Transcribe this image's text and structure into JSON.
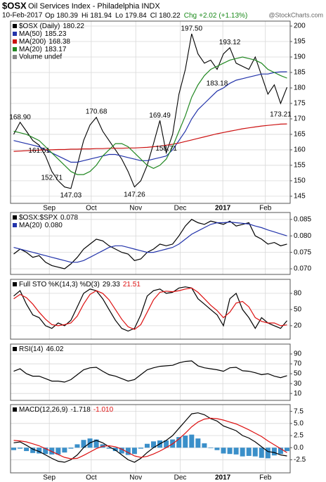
{
  "header": {
    "symbol": "$OSX",
    "title": "Oil Services Index - Philadelphia INDX",
    "date": "10-Feb-2017",
    "quote": [
      {
        "label": "Op",
        "value": 180.39
      },
      {
        "label": "Hi",
        "value": 181.94
      },
      {
        "label": "Lo",
        "value": 179.84
      },
      {
        "label": "Cl",
        "value": 180.22
      }
    ],
    "change_label": "Chg",
    "change": {
      "value": 2.02,
      "label": "+2.02"
    },
    "change_pct": {
      "value": 1.13,
      "label": "(+1.13%)"
    },
    "change_color": "#1a8a1a",
    "watermark": "@StockCharts.com"
  },
  "chart_data": [
    {
      "type": "line",
      "xlim": [
        -0.5,
        43.5
      ],
      "ylim": [
        142.7,
        201.6
      ],
      "grid": true,
      "yticks": [
        145,
        150,
        155,
        160,
        165,
        170,
        175,
        180,
        185,
        190,
        195,
        200
      ],
      "xticks": [
        {
          "value": 5.6,
          "label": "Sep"
        },
        {
          "value": 12.2,
          "label": "Oct"
        },
        {
          "value": 19.2,
          "label": "Nov"
        },
        {
          "value": 26.2,
          "label": "Dec"
        },
        {
          "value": 32.9,
          "label": "2017"
        },
        {
          "value": 39.6,
          "label": "Feb"
        }
      ],
      "series": [
        {
          "name": "$OSX (Daily)",
          "legend_value": 180.22,
          "color": "#000000",
          "values": [
            165,
            168.9,
            166,
            163,
            161.5,
            158,
            153,
            150,
            148,
            147.5,
            155,
            163,
            168,
            170.5,
            166,
            163,
            160,
            157,
            153,
            148,
            150,
            155,
            162,
            169.5,
            159,
            165,
            178,
            186,
            197.5,
            191,
            188,
            189,
            186,
            191,
            193,
            188,
            187,
            186,
            190,
            184,
            178,
            181,
            175,
            180.22
          ]
        },
        {
          "name": "MA(50)",
          "legend_value": 185.23,
          "color": "#2233aa",
          "values": [
            163,
            162.5,
            162,
            161.5,
            161,
            160,
            159,
            158,
            157,
            156,
            156,
            156.5,
            157,
            157.5,
            158,
            158.5,
            158.5,
            158,
            157.5,
            157,
            156.5,
            156.5,
            157,
            157.5,
            158,
            160,
            163,
            166,
            170,
            173,
            175,
            177,
            179,
            180,
            181.5,
            182.5,
            183,
            183.5,
            184,
            184.5,
            184.5,
            185,
            185.2,
            185.23
          ]
        },
        {
          "name": "MA(200)",
          "legend_value": 168.38,
          "color": "#cc1111",
          "values": [
            159.5,
            159.6,
            159.7,
            159.8,
            159.9,
            160,
            160,
            160.1,
            160.1,
            160.2,
            160.2,
            160.3,
            160.3,
            160.4,
            160.4,
            160.5,
            160.5,
            160.5,
            160.6,
            160.6,
            160.7,
            160.8,
            161,
            161.2,
            161.5,
            161.8,
            162.2,
            162.7,
            163.2,
            163.7,
            164.2,
            164.7,
            165.2,
            165.6,
            166,
            166.4,
            166.8,
            167.1,
            167.4,
            167.7,
            167.9,
            168.1,
            168.3,
            168.38
          ]
        },
        {
          "name": "MA(20)",
          "legend_value": 183.17,
          "color": "#228822",
          "values": [
            166,
            165.5,
            165,
            164,
            163,
            161,
            159,
            157,
            155,
            153,
            152,
            152,
            153,
            155,
            158,
            160,
            162,
            162,
            161,
            159,
            157,
            155,
            154,
            155,
            157,
            161,
            166,
            171,
            177,
            181,
            184,
            186,
            187,
            188,
            189,
            189.5,
            190,
            189.5,
            189,
            188,
            186,
            185,
            184,
            183.17
          ]
        }
      ],
      "legend_extra": [
        {
          "name": "Volume undef",
          "color": "#888888"
        }
      ],
      "annotations": [
        {
          "x": 1,
          "value": 168.9,
          "label": "168.90"
        },
        {
          "x": 4,
          "value": 161.51,
          "label": "161.51"
        },
        {
          "x": 6,
          "value": 152.71,
          "label": "152.71"
        },
        {
          "x": 9,
          "value": 147.03,
          "label": "147.03"
        },
        {
          "x": 13,
          "value": 170.68,
          "label": "170.68"
        },
        {
          "x": 19,
          "value": 147.26,
          "label": "147.26"
        },
        {
          "x": 23,
          "value": 169.49,
          "label": "169.49"
        },
        {
          "x": 24,
          "value": 158.71,
          "label": "158.71"
        },
        {
          "x": 28,
          "value": 197.5,
          "label": "197.50"
        },
        {
          "x": 34,
          "value": 193.12,
          "label": "193.12"
        },
        {
          "x": 32,
          "value": 183.18,
          "label": "183.18"
        },
        {
          "x": 42,
          "value": 173.21,
          "label": "173.21"
        }
      ]
    },
    {
      "type": "line",
      "xlim": [
        -0.5,
        43.5
      ],
      "ylim": [
        0.0683,
        0.0871
      ],
      "grid": true,
      "yticks": [
        {
          "value": 0.07,
          "label": "0.070"
        },
        0.075,
        {
          "value": 0.08,
          "label": "0.080"
        },
        0.085
      ],
      "series": [
        {
          "name": "$OSX:$SPX",
          "legend_value": 0.078,
          "color": "#000000",
          "values": [
            0.0745,
            0.076,
            0.075,
            0.0735,
            0.074,
            0.072,
            0.071,
            0.0705,
            0.07,
            0.0715,
            0.0735,
            0.076,
            0.0775,
            0.079,
            0.0785,
            0.077,
            0.076,
            0.075,
            0.0745,
            0.0725,
            0.073,
            0.075,
            0.076,
            0.0775,
            0.077,
            0.0775,
            0.08,
            0.083,
            0.085,
            0.084,
            0.0835,
            0.0845,
            0.084,
            0.0835,
            0.0845,
            0.083,
            0.0835,
            0.084,
            0.08,
            0.079,
            0.0775,
            0.078,
            0.077,
            0.0775
          ]
        },
        {
          "name": "MA(20)",
          "legend_value": {
            "value": 0.08,
            "label": "0.080"
          },
          "color": "#2233aa",
          "values": [
            0.0765,
            0.076,
            0.0755,
            0.075,
            0.0745,
            0.074,
            0.0735,
            0.073,
            0.0725,
            0.072,
            0.072,
            0.0725,
            0.0735,
            0.0745,
            0.0755,
            0.0765,
            0.077,
            0.077,
            0.0765,
            0.076,
            0.0755,
            0.075,
            0.075,
            0.0755,
            0.076,
            0.0765,
            0.0775,
            0.079,
            0.0805,
            0.0815,
            0.0825,
            0.0835,
            0.084,
            0.084,
            0.0842,
            0.084,
            0.0838,
            0.0836,
            0.083,
            0.0825,
            0.0818,
            0.0812,
            0.0806,
            0.08
          ]
        }
      ]
    },
    {
      "type": "line",
      "xlim": [
        -0.5,
        43.5
      ],
      "ylim": [
        -5,
        106
      ],
      "grid": true,
      "yticks": [
        20,
        50,
        80
      ],
      "series": [
        {
          "name": "Full STO %K(14,3) %D(3)",
          "legend_value": 29.33,
          "color": "#000000",
          "values": [
            75,
            85,
            60,
            40,
            35,
            20,
            15,
            25,
            20,
            30,
            55,
            80,
            88,
            85,
            70,
            50,
            30,
            15,
            10,
            15,
            40,
            75,
            85,
            88,
            80,
            82,
            90,
            92,
            90,
            70,
            60,
            50,
            40,
            20,
            70,
            80,
            50,
            35,
            15,
            35,
            25,
            20,
            15,
            29.33
          ]
        },
        {
          "legend_value": 21.51,
          "color": "#dd1111",
          "values": [
            70,
            78,
            72,
            60,
            45,
            32,
            22,
            20,
            22,
            25,
            38,
            60,
            78,
            85,
            80,
            68,
            50,
            32,
            18,
            13,
            22,
            45,
            68,
            82,
            84,
            83,
            85,
            88,
            90,
            82,
            70,
            58,
            48,
            35,
            45,
            62,
            65,
            55,
            35,
            28,
            25,
            25,
            20,
            21.51
          ]
        }
      ]
    },
    {
      "type": "line",
      "xlim": [
        -0.5,
        43.5
      ],
      "ylim": [
        -4,
        110
      ],
      "grid": true,
      "yticks": [
        10,
        30,
        50,
        70,
        90
      ],
      "series": [
        {
          "name": "RSI(14)",
          "legend_value": 46.02,
          "color": "#000000",
          "values": [
            55,
            60,
            50,
            45,
            45,
            40,
            35,
            35,
            33,
            38,
            48,
            58,
            62,
            63,
            55,
            48,
            45,
            40,
            35,
            38,
            48,
            58,
            62,
            65,
            66,
            67,
            72,
            75,
            76,
            66,
            62,
            60,
            58,
            55,
            62,
            63,
            56,
            55,
            52,
            48,
            50,
            45,
            42,
            46.02
          ]
        }
      ]
    },
    {
      "type": "line",
      "xlim": [
        -0.5,
        43.5
      ],
      "ylim": [
        -5.2,
        8.9
      ],
      "grid": true,
      "yticks": [
        -2.5,
        {
          "value": 0,
          "label": "0.0"
        },
        2.5,
        {
          "value": 5,
          "label": "5.0"
        },
        7.5
      ],
      "xticks": [
        {
          "value": 5.6,
          "label": "Sep"
        },
        {
          "value": 12.2,
          "label": "Oct"
        },
        {
          "value": 19.2,
          "label": "Nov"
        },
        {
          "value": 26.2,
          "label": "Dec"
        },
        {
          "value": 32.9,
          "label": "2017"
        },
        {
          "value": 39.6,
          "label": "Feb"
        }
      ],
      "series": [
        {
          "type": "bar",
          "color": "#3a8fc9",
          "values": [
            -0.5,
            -0.2,
            -0.7,
            -1.1,
            -1.2,
            -1.3,
            -1.4,
            -1.4,
            -1.0,
            -0.2,
            0.7,
            1.6,
            1.9,
            1.7,
            0.7,
            -0.2,
            -0.7,
            -1.2,
            -1.5,
            -1.3,
            -0.2,
            0.8,
            1.3,
            1.5,
            1.5,
            1.7,
            2.2,
            2.5,
            2.7,
            1.9,
            0.9,
            -0.1,
            -0.5,
            -1.2,
            -1.3,
            -1.4,
            -1.8,
            -1.7,
            -1.8,
            -2.1,
            -2.2,
            -1.6,
            -1.3,
            -0.708
          ]
        },
        {
          "name": "MACD(12,26,9)",
          "legend_value": -1.718,
          "color": "#000000",
          "values": [
            1.0,
            1.2,
            0.5,
            -0.3,
            -0.8,
            -1.5,
            -2.2,
            -2.8,
            -3.0,
            -2.5,
            -1.5,
            0.0,
            1.0,
            1.5,
            1.0,
            0.2,
            -0.5,
            -1.5,
            -2.5,
            -3.0,
            -2.2,
            -1.0,
            0.0,
            0.8,
            1.5,
            2.5,
            4.0,
            5.5,
            7.0,
            7.2,
            6.8,
            6.0,
            5.5,
            4.5,
            4.0,
            3.5,
            2.5,
            2.0,
            1.2,
            0.2,
            -0.8,
            -1.0,
            -1.5,
            -1.718
          ]
        },
        {
          "legend_value": {
            "value": -1.01,
            "label": "-1.010"
          },
          "color": "#dd1111",
          "values": [
            1.5,
            1.4,
            1.2,
            0.8,
            0.4,
            -0.2,
            -0.8,
            -1.4,
            -2.0,
            -2.3,
            -2.2,
            -1.6,
            -0.9,
            -0.2,
            0.3,
            0.4,
            0.2,
            -0.3,
            -1.0,
            -1.7,
            -2.0,
            -1.8,
            -1.3,
            -0.7,
            0.0,
            0.8,
            1.8,
            3.0,
            4.3,
            5.3,
            5.9,
            6.1,
            6.0,
            5.7,
            5.3,
            4.9,
            4.3,
            3.7,
            3.0,
            2.3,
            1.4,
            0.6,
            -0.2,
            -1.01
          ]
        }
      ]
    }
  ]
}
